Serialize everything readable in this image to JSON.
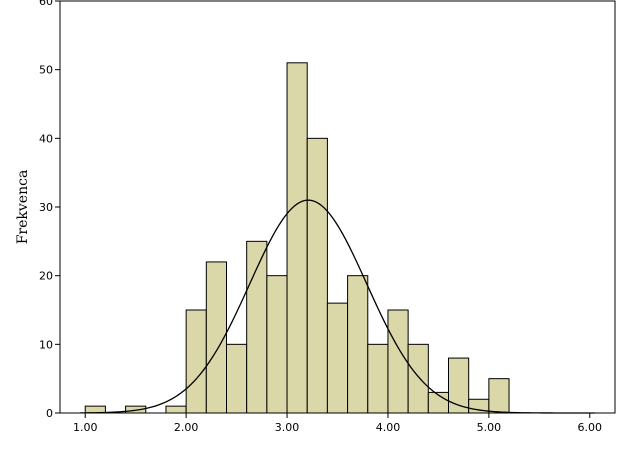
{
  "chart_data": {
    "type": "bar",
    "title": "",
    "xlabel": "",
    "ylabel": "Frekvenca",
    "xlim": [
      0.75,
      6.25
    ],
    "ylim": [
      0,
      60
    ],
    "x_ticks": [
      "1.00",
      "2.00",
      "3.00",
      "4.00",
      "5.00",
      "6.00"
    ],
    "y_ticks": [
      "0",
      "10",
      "20",
      "30",
      "40",
      "50",
      "60"
    ],
    "bins": [
      {
        "start": 1.0,
        "end": 1.2,
        "count": 1
      },
      {
        "start": 1.4,
        "end": 1.6,
        "count": 1
      },
      {
        "start": 1.8,
        "end": 2.0,
        "count": 1
      },
      {
        "start": 2.0,
        "end": 2.2,
        "count": 15
      },
      {
        "start": 2.2,
        "end": 2.4,
        "count": 22
      },
      {
        "start": 2.4,
        "end": 2.6,
        "count": 10
      },
      {
        "start": 2.6,
        "end": 2.8,
        "count": 25
      },
      {
        "start": 2.8,
        "end": 3.0,
        "count": 20
      },
      {
        "start": 3.0,
        "end": 3.2,
        "count": 51
      },
      {
        "start": 3.2,
        "end": 3.4,
        "count": 40
      },
      {
        "start": 3.4,
        "end": 3.6,
        "count": 16
      },
      {
        "start": 3.6,
        "end": 3.8,
        "count": 20
      },
      {
        "start": 3.8,
        "end": 4.0,
        "count": 10
      },
      {
        "start": 4.0,
        "end": 4.2,
        "count": 15
      },
      {
        "start": 4.2,
        "end": 4.4,
        "count": 10
      },
      {
        "start": 4.4,
        "end": 4.6,
        "count": 3
      },
      {
        "start": 4.6,
        "end": 4.8,
        "count": 8
      },
      {
        "start": 4.8,
        "end": 5.0,
        "count": 2
      },
      {
        "start": 5.0,
        "end": 5.2,
        "count": 5
      }
    ],
    "normal_curve": {
      "mean": 3.21,
      "sd": 0.58,
      "peak": 31
    },
    "bar_color": "#dad7a8",
    "bar_stroke": "#000000",
    "curve_color": "#000000",
    "grid": false,
    "legend": "none"
  }
}
